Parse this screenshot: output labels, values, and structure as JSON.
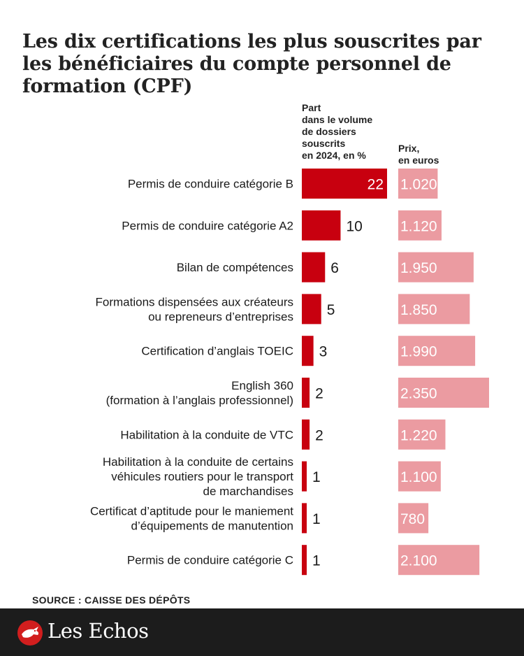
{
  "title": "Les dix certifications les plus souscrites par les bénéficiaires du compte personnel de formation (CPF)",
  "column_headers": {
    "share": "Part\ndans le volume\nde dossiers\nsouscrits\nen 2024, en %",
    "price": "Prix,\nen euros"
  },
  "source": "SOURCE : CAISSE DES DÉPÔTS",
  "logo": {
    "text": "Les Echos",
    "icon": "les-echos-bird-logo"
  },
  "colors": {
    "share_bar": "#c8000f",
    "price_bar": "#eb9ba1",
    "footer": "#1c1c1c"
  },
  "chart_data": {
    "type": "bar",
    "orientation": "horizontal",
    "categories": [
      [
        "Permis de conduire catégorie B"
      ],
      [
        "Permis de conduire catégorie A2"
      ],
      [
        "Bilan de compétences"
      ],
      [
        "Formations dispensées aux créateurs",
        "ou repreneurs d’entreprises"
      ],
      [
        "Certification d’anglais TOEIC"
      ],
      [
        "English 360",
        "(formation à l’anglais professionnel)"
      ],
      [
        "Habilitation à la conduite de VTC"
      ],
      [
        "Habilitation à la conduite de certains",
        "véhicules routiers pour le transport",
        "de marchandises"
      ],
      [
        "Certificat d’aptitude pour le maniement",
        "d’équipements de manutention"
      ],
      [
        "Permis de conduire catégorie C"
      ]
    ],
    "series": [
      {
        "name": "Part dans le volume de dossiers souscrits en 2024, en %",
        "values": [
          22,
          10,
          6,
          5,
          3,
          2,
          2,
          1,
          1,
          1
        ]
      },
      {
        "name": "Prix, en euros",
        "values": [
          1020,
          1120,
          1950,
          1850,
          1990,
          2350,
          1220,
          1100,
          780,
          2100
        ],
        "labels": [
          "1.020",
          "1.120",
          "1.950",
          "1.850",
          "1.990",
          "2.350",
          "1.220",
          "1.100",
          "780",
          "2.100"
        ]
      }
    ],
    "legend": "none",
    "grid": false
  }
}
